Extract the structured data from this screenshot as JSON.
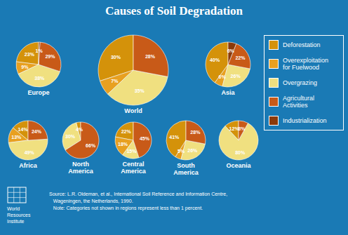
{
  "title": "Causes of Soil Degradation",
  "annotations": [
    "Source: L.R. Oldeman, et al., International Soil Reference and Information Centre,\n   Wageningen, the Netherlands, 1990.\n   Note: Categories not shown in regions represent less than 1 percent.",
    "World",
    "Resources",
    "Institute"
  ],
  "legend": "right",
  "chart_data": [
    {
      "type": "pie",
      "title": "Europe",
      "categories": [
        "Deforestation",
        "Overexploitation\nfor Fuelwood",
        "Overgrazing",
        "Agricultural\nActivities",
        "Industrialization"
      ],
      "values": [
        23,
        9,
        38,
        29,
        1
      ],
      "value_labels": [
        "23%",
        "9%",
        "38%",
        "29%",
        "1%"
      ],
      "colors": [
        "#d4920a",
        "#e8a020",
        "#f0e080",
        "#c85a18",
        "#8b3a0a"
      ],
      "data_labels": true
    },
    {
      "type": "pie",
      "title": "Africa",
      "categories": [
        "Deforestation",
        "Overexploitation\nfor Fuelwood",
        "Overgrazing",
        "Agricultural\nActivities"
      ],
      "values": [
        14,
        13,
        49,
        24
      ],
      "value_labels": [
        "14%",
        "13%",
        "49%",
        "24%"
      ],
      "colors": [
        "#d4920a",
        "#e8a020",
        "#f0e080",
        "#c85a18"
      ],
      "data_labels": true
    },
    {
      "type": "pie",
      "title": "North\nAmerica",
      "categories": [
        "Deforestation",
        "Overgrazing",
        "Agricultural\nActivities"
      ],
      "values": [
        4,
        30,
        66
      ],
      "value_labels": [
        "4%",
        "30%",
        "66%"
      ],
      "colors": [
        "#d4920a",
        "#f0e080",
        "#c85a18"
      ],
      "data_labels": true
    },
    {
      "type": "pie",
      "title": "World",
      "categories": [
        "Deforestation",
        "Overexploitation\nfor Fuelwood",
        "Overgrazing",
        "Agricultural\nActivities"
      ],
      "values": [
        30,
        7,
        35,
        28
      ],
      "value_labels": [
        "30%",
        "7%",
        "35%",
        "28%"
      ],
      "colors": [
        "#d4920a",
        "#e8a020",
        "#f0e080",
        "#c85a18"
      ],
      "data_labels": true
    },
    {
      "type": "pie",
      "title": "Central\nAmerica",
      "categories": [
        "Deforestation",
        "Overexploitation\nfor Fuelwood",
        "Overgrazing",
        "Agricultural\nActivities"
      ],
      "values": [
        22,
        18,
        15,
        45
      ],
      "value_labels": [
        "22%",
        "18%",
        "15%",
        "45%"
      ],
      "colors": [
        "#d4920a",
        "#e8a020",
        "#f0e080",
        "#c85a18"
      ],
      "data_labels": true
    },
    {
      "type": "pie",
      "title": "South\nAmerica",
      "categories": [
        "Deforestation",
        "Overexploitation\nfor Fuelwood",
        "Overgrazing",
        "Agricultural\nActivities"
      ],
      "values": [
        41,
        5,
        26,
        28
      ],
      "value_labels": [
        "41%",
        "5%",
        "26%",
        "28%"
      ],
      "colors": [
        "#d4920a",
        "#e8a020",
        "#f0e080",
        "#c85a18"
      ],
      "data_labels": true
    },
    {
      "type": "pie",
      "title": "Asia",
      "categories": [
        "Deforestation",
        "Overexploitation\nfor Fuelwood",
        "Overgrazing",
        "Agricultural\nActivities",
        "Industrialization"
      ],
      "values": [
        40,
        6,
        26,
        22,
        6
      ],
      "value_labels": [
        "40%",
        "6%",
        "26%",
        "22%",
        "6%"
      ],
      "colors": [
        "#d4920a",
        "#e8a020",
        "#f0e080",
        "#c85a18",
        "#8b3a0a"
      ],
      "data_labels": true
    },
    {
      "type": "pie",
      "title": "Oceania",
      "categories": [
        "Deforestation",
        "Overgrazing",
        "Agricultural\nActivities"
      ],
      "values": [
        12,
        80,
        8
      ],
      "value_labels": [
        "12%",
        "80%",
        "8%"
      ],
      "colors": [
        "#d4920a",
        "#f0e080",
        "#c85a18"
      ],
      "data_labels": true
    }
  ]
}
